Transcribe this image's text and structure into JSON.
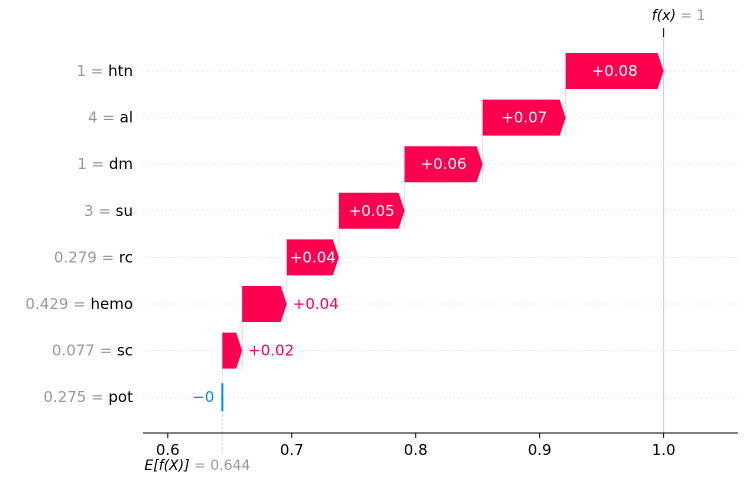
{
  "chart_data": {
    "type": "waterfall",
    "base_value": 0.644,
    "base_label": "E[f(X)] = 0.644",
    "output_value": 1,
    "output_label": "f(x) = 1",
    "xlim": [
      0.58,
      1.06
    ],
    "x_ticks": [
      0.6,
      0.7,
      0.8,
      0.9,
      1.0
    ],
    "x_tick_labels": [
      "0.6",
      "0.7",
      "0.8",
      "0.9",
      "1.0"
    ],
    "colors": {
      "positive": "#ff0051",
      "negative": "#008bfb",
      "value_label": "#999999"
    },
    "features": [
      {
        "value": "1",
        "name": "htn",
        "start": 0.921,
        "end": 1.0,
        "label": "+0.08",
        "label_inside": true
      },
      {
        "value": "4",
        "name": "al",
        "start": 0.854,
        "end": 0.921,
        "label": "+0.07",
        "label_inside": true
      },
      {
        "value": "1",
        "name": "dm",
        "start": 0.791,
        "end": 0.854,
        "label": "+0.06",
        "label_inside": true
      },
      {
        "value": "3",
        "name": "su",
        "start": 0.738,
        "end": 0.791,
        "label": "+0.05",
        "label_inside": true
      },
      {
        "value": "0.279",
        "name": "rc",
        "start": 0.696,
        "end": 0.738,
        "label": "+0.04",
        "label_inside": true
      },
      {
        "value": "0.429",
        "name": "hemo",
        "start": 0.66,
        "end": 0.696,
        "label": "+0.04",
        "label_inside": false
      },
      {
        "value": "0.077",
        "name": "sc",
        "start": 0.644,
        "end": 0.66,
        "label": "+0.02",
        "label_inside": false
      },
      {
        "value": "0.275",
        "name": "pot",
        "start": 0.644,
        "end": 0.644,
        "label": "−0",
        "label_inside": false
      }
    ]
  }
}
